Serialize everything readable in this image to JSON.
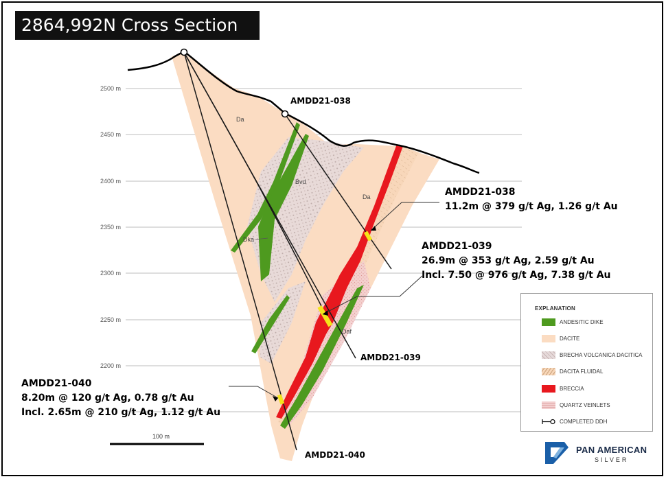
{
  "title": "2864,992N Cross Section",
  "elevations": [
    "2500 m",
    "2450 m",
    "2400 m",
    "2350 m",
    "2300 m",
    "2250 m",
    "2200 m"
  ],
  "units": [
    "Da",
    "Bvd",
    "Da",
    "Dka",
    "Daf"
  ],
  "scale_label": "100 m",
  "holes": {
    "h038_collar": "AMDD21-038",
    "h039_end": "AMDD21-039",
    "h040_end": "AMDD21-040"
  },
  "results": {
    "r038": {
      "hole": "AMDD21-038",
      "line1": "11.2m @ 379 g/t Ag, 1.26 g/t Au"
    },
    "r039": {
      "hole": "AMDD21-039",
      "line1": "26.9m @ 353 g/t Ag, 2.59 g/t Au",
      "line2": "Incl. 7.50 @ 976 g/t Ag, 7.38 g/t Au"
    },
    "r040": {
      "hole": "AMDD21-040",
      "line1": "8.20m @ 120 g/t Ag, 0.78 g/t Au",
      "line2": "Incl. 2.65m @ 210 g/t Ag, 1.12 g/t Au"
    }
  },
  "legend": {
    "title": "EXPLANATION",
    "items": [
      {
        "label": "ANDESITIC DIKE",
        "color": "#4e9a1f"
      },
      {
        "label": "DACITE",
        "color": "#fbdcc2"
      },
      {
        "label": "BRECHA VOLCANICA DACITICA",
        "color": "#e0d3d3"
      },
      {
        "label": "DACITA FLUIDAL",
        "color": "#f6d0ae"
      },
      {
        "label": "BRECCIA",
        "color": "#e8181e"
      },
      {
        "label": "QUARTZ VEINLETS",
        "color": "#f2c9c9"
      },
      {
        "label": "COMPLETED DDH",
        "color": "#000000"
      }
    ]
  },
  "logo": {
    "name": "PAN AMERICAN",
    "sub": "SILVER"
  },
  "colors": {
    "dacite": "#fbdcc2",
    "dike": "#4e9a1f",
    "breccia": "#e8181e",
    "intercept": "#f4e41a"
  }
}
